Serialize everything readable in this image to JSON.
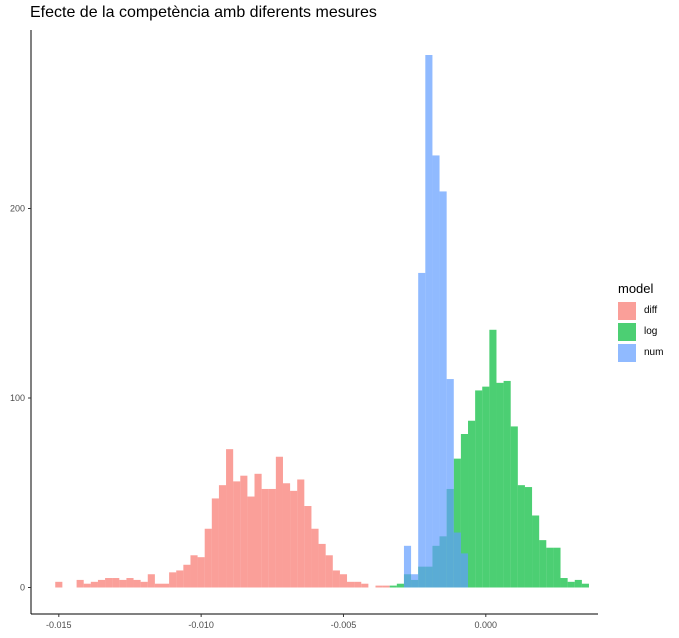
{
  "chart_data": {
    "type": "histogram",
    "title": "Efecte de la competència amb diferents mesures",
    "xlabel": "",
    "ylabel": "",
    "xlim": [
      -0.0158,
      0.004
    ],
    "ylim": [
      0,
      285
    ],
    "x_ticks": [
      {
        "value": -0.015,
        "label": "-0.015"
      },
      {
        "value": -0.01,
        "label": "-0.010"
      },
      {
        "value": -0.005,
        "label": "-0.005"
      },
      {
        "value": 0.0,
        "label": "0.000"
      }
    ],
    "y_ticks": [
      {
        "value": 0,
        "label": "0"
      },
      {
        "value": 100,
        "label": "100"
      },
      {
        "value": 200,
        "label": "200"
      }
    ],
    "bin_width": 0.00025,
    "grid": false,
    "legend": {
      "title": "model",
      "position": "right"
    },
    "series": [
      {
        "name": "diff",
        "color": "#F8766D",
        "bins": [
          {
            "x": -0.015,
            "y": 3
          },
          {
            "x": -0.01425,
            "y": 4
          },
          {
            "x": -0.014,
            "y": 2
          },
          {
            "x": -0.01375,
            "y": 3
          },
          {
            "x": -0.0135,
            "y": 4
          },
          {
            "x": -0.01325,
            "y": 5
          },
          {
            "x": -0.013,
            "y": 5
          },
          {
            "x": -0.01275,
            "y": 4
          },
          {
            "x": -0.0125,
            "y": 5
          },
          {
            "x": -0.01225,
            "y": 4
          },
          {
            "x": -0.012,
            "y": 3
          },
          {
            "x": -0.01175,
            "y": 7
          },
          {
            "x": -0.0115,
            "y": 2
          },
          {
            "x": -0.01125,
            "y": 2
          },
          {
            "x": -0.011,
            "y": 8
          },
          {
            "x": -0.01075,
            "y": 9
          },
          {
            "x": -0.0105,
            "y": 12
          },
          {
            "x": -0.01025,
            "y": 17
          },
          {
            "x": -0.01,
            "y": 16
          },
          {
            "x": -0.00975,
            "y": 31
          },
          {
            "x": -0.0095,
            "y": 47
          },
          {
            "x": -0.00925,
            "y": 54
          },
          {
            "x": -0.009,
            "y": 73
          },
          {
            "x": -0.00875,
            "y": 56
          },
          {
            "x": -0.0085,
            "y": 59
          },
          {
            "x": -0.00825,
            "y": 48
          },
          {
            "x": -0.008,
            "y": 60
          },
          {
            "x": -0.00775,
            "y": 52
          },
          {
            "x": -0.0075,
            "y": 52
          },
          {
            "x": -0.00725,
            "y": 69
          },
          {
            "x": -0.007,
            "y": 55
          },
          {
            "x": -0.00675,
            "y": 51
          },
          {
            "x": -0.0065,
            "y": 57
          },
          {
            "x": -0.00625,
            "y": 43
          },
          {
            "x": -0.006,
            "y": 31
          },
          {
            "x": -0.00575,
            "y": 23
          },
          {
            "x": -0.0055,
            "y": 17
          },
          {
            "x": -0.00525,
            "y": 9
          },
          {
            "x": -0.005,
            "y": 7
          },
          {
            "x": -0.00475,
            "y": 3
          },
          {
            "x": -0.0045,
            "y": 3
          },
          {
            "x": -0.00425,
            "y": 2
          },
          {
            "x": -0.00375,
            "y": 1
          },
          {
            "x": -0.0035,
            "y": 1
          }
        ]
      },
      {
        "name": "log",
        "color": "#00BA38",
        "bins": [
          {
            "x": -0.00325,
            "y": 1
          },
          {
            "x": -0.003,
            "y": 2
          },
          {
            "x": -0.00275,
            "y": 7
          },
          {
            "x": -0.0025,
            "y": 4
          },
          {
            "x": -0.00225,
            "y": 11
          },
          {
            "x": -0.002,
            "y": 11
          },
          {
            "x": -0.00175,
            "y": 22
          },
          {
            "x": -0.0015,
            "y": 27
          },
          {
            "x": -0.00125,
            "y": 52
          },
          {
            "x": -0.001,
            "y": 68
          },
          {
            "x": -0.00075,
            "y": 81
          },
          {
            "x": -0.0005,
            "y": 88
          },
          {
            "x": -0.00025,
            "y": 104
          },
          {
            "x": 0.0,
            "y": 106
          },
          {
            "x": 0.00025,
            "y": 136
          },
          {
            "x": 0.0005,
            "y": 108
          },
          {
            "x": 0.00075,
            "y": 109
          },
          {
            "x": 0.001,
            "y": 85
          },
          {
            "x": 0.00125,
            "y": 54
          },
          {
            "x": 0.0015,
            "y": 53
          },
          {
            "x": 0.00175,
            "y": 38
          },
          {
            "x": 0.002,
            "y": 25
          },
          {
            "x": 0.00225,
            "y": 21
          },
          {
            "x": 0.0025,
            "y": 21
          },
          {
            "x": 0.00275,
            "y": 5
          },
          {
            "x": 0.003,
            "y": 3
          },
          {
            "x": 0.00325,
            "y": 4
          },
          {
            "x": 0.0035,
            "y": 2
          }
        ]
      },
      {
        "name": "num",
        "color": "#619CFF",
        "bins": [
          {
            "x": -0.00275,
            "y": 22
          },
          {
            "x": -0.0025,
            "y": 7
          },
          {
            "x": -0.00225,
            "y": 166
          },
          {
            "x": -0.002,
            "y": 281
          },
          {
            "x": -0.00175,
            "y": 228
          },
          {
            "x": -0.0015,
            "y": 209
          },
          {
            "x": -0.00125,
            "y": 110
          },
          {
            "x": -0.001,
            "y": 29
          },
          {
            "x": -0.00075,
            "y": 18
          }
        ]
      }
    ]
  }
}
